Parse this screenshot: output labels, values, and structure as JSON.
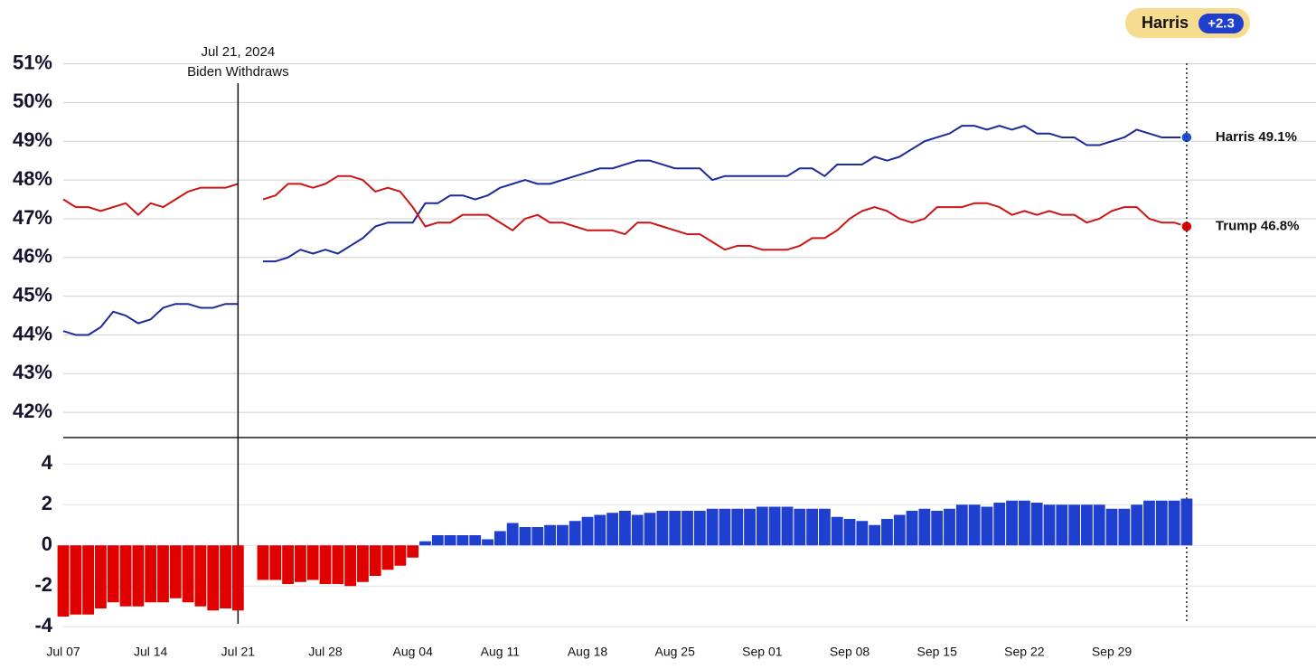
{
  "chart_data": [
    {
      "type": "line",
      "x": [
        "Jul 07",
        "Jul 08",
        "Jul 09",
        "Jul 10",
        "Jul 11",
        "Jul 12",
        "Jul 13",
        "Jul 14",
        "Jul 15",
        "Jul 16",
        "Jul 17",
        "Jul 18",
        "Jul 19",
        "Jul 20",
        "Jul 21",
        "Jul 22",
        "Jul 23",
        "Jul 24",
        "Jul 25",
        "Jul 26",
        "Jul 27",
        "Jul 28",
        "Jul 29",
        "Jul 30",
        "Jul 31",
        "Aug 01",
        "Aug 02",
        "Aug 03",
        "Aug 04",
        "Aug 05",
        "Aug 06",
        "Aug 07",
        "Aug 08",
        "Aug 09",
        "Aug 10",
        "Aug 11",
        "Aug 12",
        "Aug 13",
        "Aug 14",
        "Aug 15",
        "Aug 16",
        "Aug 17",
        "Aug 18",
        "Aug 19",
        "Aug 20",
        "Aug 21",
        "Aug 22",
        "Aug 23",
        "Aug 24",
        "Aug 25",
        "Aug 26",
        "Aug 27",
        "Aug 28",
        "Aug 29",
        "Aug 30",
        "Aug 31",
        "Sep 01",
        "Sep 02",
        "Sep 03",
        "Sep 04",
        "Sep 05",
        "Sep 06",
        "Sep 07",
        "Sep 08",
        "Sep 09",
        "Sep 10",
        "Sep 11",
        "Sep 12",
        "Sep 13",
        "Sep 14",
        "Sep 15",
        "Sep 16",
        "Sep 17",
        "Sep 18",
        "Sep 19",
        "Sep 20",
        "Sep 21",
        "Sep 22",
        "Sep 23",
        "Sep 24",
        "Sep 25",
        "Sep 26",
        "Sep 27",
        "Sep 28",
        "Sep 29",
        "Sep 30",
        "Oct 01",
        "Oct 02",
        "Oct 03",
        "Oct 04",
        "Oct 05"
      ],
      "series": [
        {
          "name": "Harris",
          "color": "#1c2a9a",
          "marker_color": "#1f4fd6",
          "end_label": "Harris 49.1%",
          "values": [
            44.1,
            44.0,
            44.0,
            44.2,
            44.6,
            44.5,
            44.3,
            44.4,
            44.7,
            44.8,
            44.8,
            44.7,
            44.7,
            44.8,
            44.8,
            null,
            45.9,
            45.9,
            46.0,
            46.2,
            46.1,
            46.2,
            46.1,
            46.3,
            46.5,
            46.8,
            46.9,
            46.9,
            46.9,
            47.4,
            47.4,
            47.6,
            47.6,
            47.5,
            47.6,
            47.8,
            47.9,
            48.0,
            47.9,
            47.9,
            48.0,
            48.1,
            48.2,
            48.3,
            48.3,
            48.4,
            48.5,
            48.5,
            48.4,
            48.3,
            48.3,
            48.3,
            48.0,
            48.1,
            48.1,
            48.1,
            48.1,
            48.1,
            48.1,
            48.3,
            48.3,
            48.1,
            48.4,
            48.4,
            48.4,
            48.6,
            48.5,
            48.6,
            48.8,
            49.0,
            49.1,
            49.2,
            49.4,
            49.4,
            49.3,
            49.4,
            49.3,
            49.4,
            49.2,
            49.2,
            49.1,
            49.1,
            48.9,
            48.9,
            49.0,
            49.1,
            49.3,
            49.2,
            49.1,
            49.1,
            49.1
          ]
        },
        {
          "name": "Trump",
          "color": "#cc1414",
          "marker_color": "#e00000",
          "end_label": "Trump 46.8%",
          "values": [
            47.5,
            47.3,
            47.3,
            47.2,
            47.3,
            47.4,
            47.1,
            47.4,
            47.3,
            47.5,
            47.7,
            47.8,
            47.8,
            47.8,
            47.9,
            null,
            47.5,
            47.6,
            47.9,
            47.9,
            47.8,
            47.9,
            48.1,
            48.1,
            48.0,
            47.7,
            47.8,
            47.7,
            47.3,
            46.8,
            46.9,
            46.9,
            47.1,
            47.1,
            47.1,
            46.9,
            46.7,
            47.0,
            47.1,
            46.9,
            46.9,
            46.8,
            46.7,
            46.7,
            46.7,
            46.6,
            46.9,
            46.9,
            46.8,
            46.7,
            46.6,
            46.6,
            46.4,
            46.2,
            46.3,
            46.3,
            46.2,
            46.2,
            46.2,
            46.3,
            46.5,
            46.5,
            46.7,
            47.0,
            47.2,
            47.3,
            47.2,
            47.0,
            46.9,
            47.0,
            47.3,
            47.3,
            47.3,
            47.4,
            47.4,
            47.3,
            47.1,
            47.2,
            47.1,
            47.2,
            47.1,
            47.1,
            46.9,
            47.0,
            47.2,
            47.3,
            47.3,
            47.0,
            46.9,
            46.9,
            46.8
          ]
        }
      ],
      "ylim": [
        41.35,
        51.2
      ],
      "yticks": [
        {
          "value": 42,
          "label": "42%"
        },
        {
          "value": 43,
          "label": "43%"
        },
        {
          "value": 44,
          "label": "44%"
        },
        {
          "value": 45,
          "label": "45%"
        },
        {
          "value": 46,
          "label": "46%"
        },
        {
          "value": 47,
          "label": "47%"
        },
        {
          "value": 48,
          "label": "48%"
        },
        {
          "value": 49,
          "label": "49%"
        },
        {
          "value": 50,
          "label": "50%"
        },
        {
          "value": 51,
          "label": "51%"
        }
      ],
      "grid": true,
      "annotation": {
        "x": "Jul 21",
        "date_label": "Jul 21, 2024",
        "text": "Biden Withdraws"
      },
      "leader": {
        "name": "Harris",
        "margin": "+2.3"
      }
    },
    {
      "type": "bar",
      "x": [
        "Jul 07",
        "Jul 08",
        "Jul 09",
        "Jul 10",
        "Jul 11",
        "Jul 12",
        "Jul 13",
        "Jul 14",
        "Jul 15",
        "Jul 16",
        "Jul 17",
        "Jul 18",
        "Jul 19",
        "Jul 20",
        "Jul 21",
        "Jul 22",
        "Jul 23",
        "Jul 24",
        "Jul 25",
        "Jul 26",
        "Jul 27",
        "Jul 28",
        "Jul 29",
        "Jul 30",
        "Jul 31",
        "Aug 01",
        "Aug 02",
        "Aug 03",
        "Aug 04",
        "Aug 05",
        "Aug 06",
        "Aug 07",
        "Aug 08",
        "Aug 09",
        "Aug 10",
        "Aug 11",
        "Aug 12",
        "Aug 13",
        "Aug 14",
        "Aug 15",
        "Aug 16",
        "Aug 17",
        "Aug 18",
        "Aug 19",
        "Aug 20",
        "Aug 21",
        "Aug 22",
        "Aug 23",
        "Aug 24",
        "Aug 25",
        "Aug 26",
        "Aug 27",
        "Aug 28",
        "Aug 29",
        "Aug 30",
        "Aug 31",
        "Sep 01",
        "Sep 02",
        "Sep 03",
        "Sep 04",
        "Sep 05",
        "Sep 06",
        "Sep 07",
        "Sep 08",
        "Sep 09",
        "Sep 10",
        "Sep 11",
        "Sep 12",
        "Sep 13",
        "Sep 14",
        "Sep 15",
        "Sep 16",
        "Sep 17",
        "Sep 18",
        "Sep 19",
        "Sep 20",
        "Sep 21",
        "Sep 22",
        "Sep 23",
        "Sep 24",
        "Sep 25",
        "Sep 26",
        "Sep 27",
        "Sep 28",
        "Sep 29",
        "Sep 30",
        "Oct 01",
        "Oct 02",
        "Oct 03",
        "Oct 04",
        "Oct 05"
      ],
      "values": [
        -3.5,
        -3.4,
        -3.4,
        -3.1,
        -2.8,
        -3.0,
        -3.0,
        -2.8,
        -2.8,
        -2.6,
        -2.8,
        -3.0,
        -3.2,
        -3.1,
        -3.2,
        null,
        -1.7,
        -1.7,
        -1.9,
        -1.8,
        -1.7,
        -1.9,
        -1.9,
        -2.0,
        -1.8,
        -1.5,
        -1.2,
        -1.0,
        -0.6,
        0.2,
        0.5,
        0.5,
        0.5,
        0.5,
        0.3,
        0.7,
        1.1,
        0.9,
        0.9,
        1.0,
        1.0,
        1.2,
        1.4,
        1.5,
        1.6,
        1.7,
        1.5,
        1.6,
        1.7,
        1.7,
        1.7,
        1.7,
        1.8,
        1.8,
        1.8,
        1.8,
        1.9,
        1.9,
        1.9,
        1.8,
        1.8,
        1.8,
        1.4,
        1.3,
        1.2,
        1.0,
        1.3,
        1.5,
        1.7,
        1.8,
        1.7,
        1.8,
        2.0,
        2.0,
        1.9,
        2.1,
        2.2,
        2.2,
        2.1,
        2.0,
        2.0,
        2.0,
        2.0,
        2.0,
        1.8,
        1.8,
        2.0,
        2.2,
        2.2,
        2.2,
        2.3
      ],
      "positive_color": "#1f3fcf",
      "negative_color": "#e00000",
      "ylim": [
        -4.3,
        5.3
      ],
      "yticks": [
        4,
        2,
        0,
        -2,
        -4
      ],
      "xticks": [
        "Jul 07",
        "Jul 14",
        "Jul 21",
        "Jul 28",
        "Aug 04",
        "Aug 11",
        "Aug 18",
        "Aug 25",
        "Sep 01",
        "Sep 08",
        "Sep 15",
        "Sep 22",
        "Sep 29"
      ],
      "grid": true
    }
  ]
}
